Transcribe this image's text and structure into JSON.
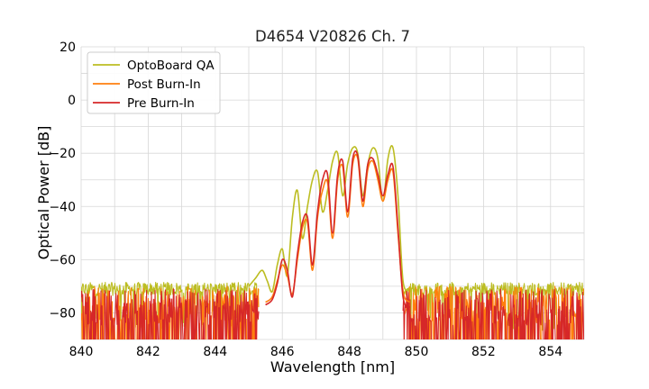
{
  "chart_data": {
    "type": "line",
    "title": "D4654 V20826 Ch. 7",
    "xlabel": "Wavelength [nm]",
    "ylabel": "Optical Power [dB]",
    "xlim": [
      840,
      855
    ],
    "ylim": [
      -90,
      20
    ],
    "xticks": [
      840,
      842,
      844,
      846,
      848,
      850,
      852,
      854
    ],
    "yticks": [
      -80,
      -60,
      -40,
      -20,
      0,
      20
    ],
    "xtick_labels": [
      "840",
      "842",
      "844",
      "846",
      "848",
      "850",
      "852",
      "854"
    ],
    "ytick_labels": [
      "−80",
      "−60",
      "−40",
      "−20",
      "0",
      "20"
    ],
    "grid": true,
    "legend_position": "top-left",
    "noise_floor": {
      "x_range_low": [
        840,
        845.3
      ],
      "x_range_high": [
        849.6,
        855
      ]
    },
    "series": [
      {
        "name": "OptoBoard QA",
        "color": "#bcbd22",
        "noise_level": -71,
        "x": [
          845.0,
          845.2,
          845.4,
          845.55,
          845.7,
          845.85,
          846.0,
          846.15,
          846.3,
          846.45,
          846.6,
          846.75,
          846.9,
          847.05,
          847.2,
          847.35,
          847.5,
          847.65,
          847.8,
          847.95,
          848.1,
          848.25,
          848.4,
          848.55,
          848.7,
          848.85,
          849.0,
          849.15,
          849.3,
          849.45,
          849.6,
          849.8
        ],
        "y": [
          -70,
          -67,
          -64,
          -68,
          -72,
          -62,
          -56,
          -66,
          -44,
          -34,
          -52,
          -40,
          -30,
          -27,
          -42,
          -34,
          -23,
          -20,
          -36,
          -24,
          -18,
          -20,
          -36,
          -24,
          -18,
          -22,
          -38,
          -22,
          -18,
          -36,
          -68,
          -71
        ]
      },
      {
        "name": "Post Burn-In",
        "color": "#ff7f0e",
        "noise_level": -77,
        "x": [
          845.5,
          845.7,
          845.85,
          846.0,
          846.15,
          846.3,
          846.45,
          846.6,
          846.75,
          846.9,
          847.05,
          847.2,
          847.35,
          847.5,
          847.65,
          847.8,
          847.95,
          848.1,
          848.25,
          848.4,
          848.55,
          848.7,
          848.85,
          849.0,
          849.15,
          849.3,
          849.45,
          849.6,
          849.8
        ],
        "y": [
          -76,
          -74,
          -68,
          -62,
          -66,
          -73,
          -60,
          -48,
          -46,
          -64,
          -44,
          -34,
          -31,
          -52,
          -30,
          -25,
          -44,
          -24,
          -22,
          -40,
          -26,
          -23,
          -30,
          -38,
          -30,
          -27,
          -50,
          -72,
          -76
        ]
      },
      {
        "name": "Pre Burn-In",
        "color": "#d62728",
        "noise_level": -78,
        "x": [
          845.5,
          845.7,
          845.85,
          846.0,
          846.15,
          846.3,
          846.45,
          846.6,
          846.75,
          846.9,
          847.05,
          847.2,
          847.35,
          847.5,
          847.65,
          847.8,
          847.95,
          848.1,
          848.25,
          848.4,
          848.55,
          848.7,
          848.85,
          849.0,
          849.15,
          849.3,
          849.45,
          849.6,
          849.8
        ],
        "y": [
          -77,
          -75,
          -69,
          -60,
          -64,
          -74,
          -58,
          -46,
          -44,
          -62,
          -42,
          -30,
          -28,
          -50,
          -28,
          -23,
          -42,
          -22,
          -21,
          -38,
          -24,
          -22,
          -28,
          -36,
          -28,
          -25,
          -48,
          -74,
          -78
        ]
      }
    ]
  }
}
